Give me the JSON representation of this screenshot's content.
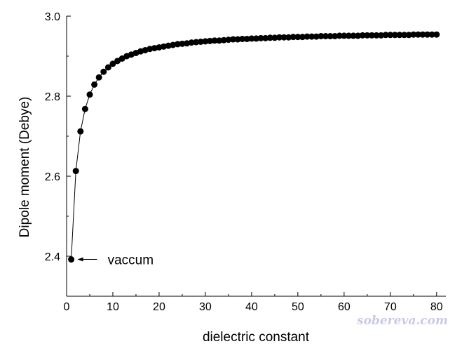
{
  "chart_data": {
    "type": "scatter",
    "line": true,
    "xlabel": "dielectric constant",
    "ylabel": "Dipole moment (Debye)",
    "xlim": [
      0,
      82
    ],
    "ylim": [
      2.3,
      3.0
    ],
    "xticks": [
      0,
      10,
      20,
      30,
      40,
      50,
      60,
      70,
      80
    ],
    "yticks": [
      2.4,
      2.6,
      2.8,
      3.0
    ],
    "xtick_labels": [
      "0",
      "10",
      "20",
      "30",
      "40",
      "50",
      "60",
      "70",
      "80"
    ],
    "ytick_labels": [
      "2.4",
      "2.6",
      "2.8",
      "3.0"
    ],
    "grid": false,
    "series": [
      {
        "x": [
          1,
          2,
          3,
          4,
          5,
          6,
          7,
          8,
          9,
          10,
          11,
          12,
          13,
          14,
          15,
          16,
          17,
          18,
          19,
          20,
          21,
          22,
          23,
          24,
          25,
          26,
          27,
          28,
          29,
          30,
          31,
          32,
          33,
          34,
          35,
          36,
          37,
          38,
          39,
          40,
          41,
          42,
          43,
          44,
          45,
          46,
          47,
          48,
          49,
          50,
          51,
          52,
          53,
          54,
          55,
          56,
          57,
          58,
          59,
          60,
          61,
          62,
          63,
          64,
          65,
          66,
          67,
          68,
          69,
          70,
          71,
          72,
          73,
          74,
          75,
          76,
          77,
          78,
          79,
          80
        ],
        "y": [
          2.392,
          2.613,
          2.712,
          2.768,
          2.804,
          2.829,
          2.847,
          2.861,
          2.872,
          2.881,
          2.888,
          2.894,
          2.9,
          2.904,
          2.908,
          2.912,
          2.915,
          2.918,
          2.92,
          2.922,
          2.924,
          2.926,
          2.928,
          2.93,
          2.931,
          2.932,
          2.934,
          2.935,
          2.936,
          2.937,
          2.938,
          2.939,
          2.939,
          2.94,
          2.941,
          2.942,
          2.942,
          2.943,
          2.943,
          2.944,
          2.944,
          2.945,
          2.945,
          2.946,
          2.946,
          2.947,
          2.947,
          2.947,
          2.948,
          2.948,
          2.948,
          2.949,
          2.949,
          2.949,
          2.95,
          2.95,
          2.95,
          2.95,
          2.951,
          2.951,
          2.951,
          2.951,
          2.951,
          2.952,
          2.952,
          2.952,
          2.952,
          2.952,
          2.953,
          2.953,
          2.953,
          2.953,
          2.953,
          2.953,
          2.954,
          2.954,
          2.954,
          2.954,
          2.954,
          2.954
        ]
      }
    ],
    "annotations": [
      {
        "text": "vaccum",
        "target_x": 1,
        "target_y": 2.392
      }
    ]
  },
  "watermark": "sobereva.com"
}
